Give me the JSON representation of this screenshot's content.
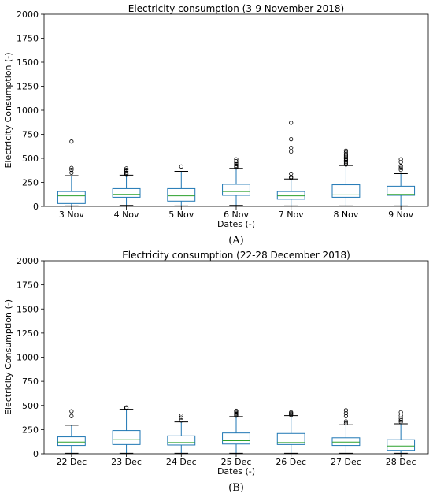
{
  "colors": {
    "box": "#1f77b4",
    "median": "#2ca02c",
    "flier": "#000000",
    "frame": "#000000"
  },
  "chart_data": [
    {
      "type": "box",
      "title": "Electricity consumption (3-9 November 2018)",
      "xlabel": "Dates (-)",
      "ylabel": "Electricity Consumption (-)",
      "ylim": [
        0,
        2000
      ],
      "yticks": [
        0,
        250,
        500,
        750,
        1000,
        1250,
        1500,
        1750,
        2000
      ],
      "grid": false,
      "caption": "(A)",
      "categories": [
        "3 Nov",
        "4 Nov",
        "5 Nov",
        "6 Nov",
        "7 Nov",
        "8 Nov",
        "9 Nov"
      ],
      "boxes": [
        {
          "whislo": 5,
          "q1": 30,
          "med": 110,
          "q3": 155,
          "whishi": 320,
          "fliers": [
            350,
            380,
            400,
            675
          ]
        },
        {
          "whislo": 10,
          "q1": 95,
          "med": 125,
          "q3": 185,
          "whishi": 325,
          "fliers": [
            330,
            340,
            350,
            365,
            380,
            395
          ]
        },
        {
          "whislo": 5,
          "q1": 55,
          "med": 110,
          "q3": 185,
          "whishi": 365,
          "fliers": [
            415
          ]
        },
        {
          "whislo": 10,
          "q1": 115,
          "med": 155,
          "q3": 230,
          "whishi": 395,
          "fliers": [
            405,
            415,
            425,
            440,
            455,
            470,
            490
          ]
        },
        {
          "whislo": 5,
          "q1": 75,
          "med": 110,
          "q3": 155,
          "whishi": 285,
          "fliers": [
            295,
            305,
            340,
            570,
            610,
            700,
            870
          ]
        },
        {
          "whislo": 5,
          "q1": 95,
          "med": 120,
          "q3": 225,
          "whishi": 425,
          "fliers": [
            435,
            450,
            465,
            480,
            495,
            510,
            525,
            540,
            560,
            580
          ]
        },
        {
          "whislo": 5,
          "q1": 115,
          "med": 125,
          "q3": 210,
          "whishi": 340,
          "fliers": [
            380,
            400,
            420,
            460,
            490
          ]
        }
      ]
    },
    {
      "type": "box",
      "title": "Electricity consumption (22-28 December 2018)",
      "xlabel": "Dates (-)",
      "ylabel": "Electricity Consumption (-)",
      "ylim": [
        0,
        2000
      ],
      "yticks": [
        0,
        250,
        500,
        750,
        1000,
        1250,
        1500,
        1750,
        2000
      ],
      "grid": false,
      "caption": "(B)",
      "categories": [
        "22 Dec",
        "23 Dec",
        "24 Dec",
        "25 Dec",
        "26 Dec",
        "27 Dec",
        "28 Dec"
      ],
      "boxes": [
        {
          "whislo": 5,
          "q1": 85,
          "med": 120,
          "q3": 175,
          "whishi": 295,
          "fliers": [
            390,
            440
          ]
        },
        {
          "whislo": 5,
          "q1": 95,
          "med": 145,
          "q3": 240,
          "whishi": 460,
          "fliers": [
            470,
            480
          ]
        },
        {
          "whislo": 5,
          "q1": 90,
          "med": 115,
          "q3": 185,
          "whishi": 330,
          "fliers": [
            345,
            375,
            395
          ]
        },
        {
          "whislo": 5,
          "q1": 100,
          "med": 135,
          "q3": 215,
          "whishi": 385,
          "fliers": [
            395,
            405,
            415,
            425,
            435,
            445
          ]
        },
        {
          "whislo": 5,
          "q1": 95,
          "med": 115,
          "q3": 210,
          "whishi": 395,
          "fliers": [
            400,
            410,
            420,
            430
          ]
        },
        {
          "whislo": 5,
          "q1": 85,
          "med": 120,
          "q3": 165,
          "whishi": 300,
          "fliers": [
            315,
            335,
            390,
            420,
            450
          ]
        },
        {
          "whislo": 5,
          "q1": 35,
          "med": 80,
          "q3": 145,
          "whishi": 310,
          "fliers": [
            330,
            345,
            365,
            395,
            430
          ]
        }
      ]
    }
  ]
}
